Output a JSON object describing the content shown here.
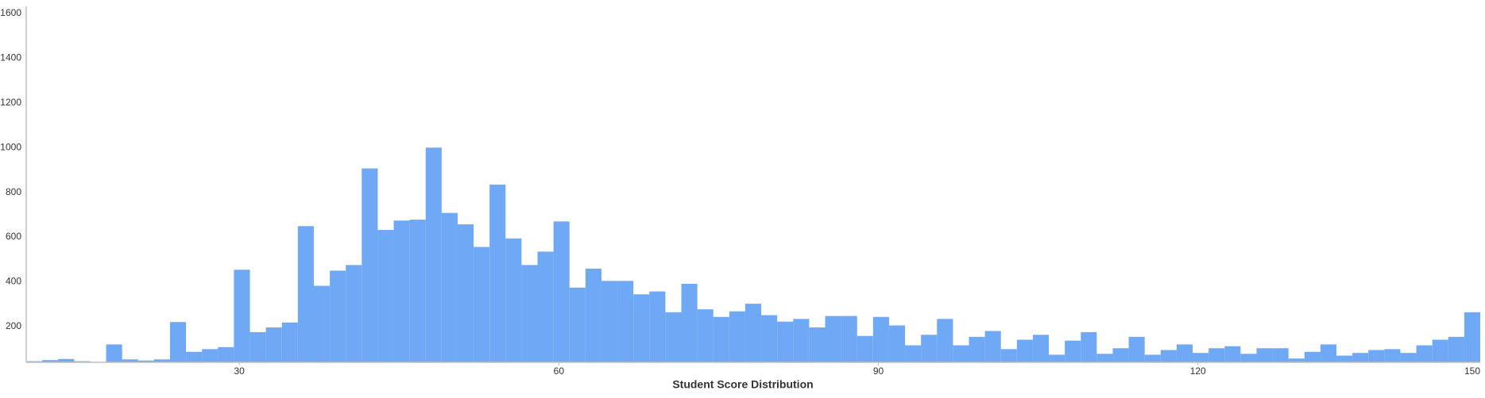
{
  "chart_data": {
    "type": "histogram",
    "xlabel": "Student Score Distribution",
    "color": "#6fa8f4",
    "bins": [
      10,
      11.5,
      13,
      14.5,
      16,
      17.5,
      19,
      20.5,
      22,
      23.5,
      25,
      26.5,
      28,
      29.5,
      31,
      32.5,
      34,
      35.5,
      37,
      38.5,
      40,
      41.5,
      43,
      44.5,
      46,
      47.5,
      49,
      50.5,
      52,
      53.5,
      55,
      56.5,
      58,
      59.5,
      61,
      62.5,
      64,
      65.5,
      67,
      68.5,
      70,
      71.5,
      73,
      74.5,
      76,
      77.5,
      79,
      80.5,
      82,
      83.5,
      85,
      86.5,
      88,
      89.5,
      91,
      92.5,
      94,
      95.5,
      97,
      98.5,
      100,
      101.5,
      103,
      104.5,
      106,
      107.5,
      109,
      110.5,
      112,
      113.5,
      115,
      116.5,
      118,
      119.5,
      121,
      122.5,
      124,
      125.5,
      127,
      128.5,
      130,
      131.5,
      133,
      134.5,
      136,
      137.5,
      139,
      140.5,
      142,
      143.5,
      145,
      146.5
    ],
    "counts": [
      45,
      50,
      55,
      45,
      42,
      120,
      53,
      48,
      53,
      220,
      87,
      99,
      108,
      454,
      175,
      196,
      218,
      649,
      382,
      450,
      475,
      907,
      632,
      674,
      678,
      1000,
      708,
      657,
      556,
      835,
      594,
      475,
      535,
      670,
      374,
      459,
      404,
      404,
      344,
      357,
      264,
      391,
      277,
      243,
      268,
      302,
      251,
      222,
      234,
      196,
      247,
      247,
      158,
      243,
      205,
      116,
      163,
      234,
      116,
      154,
      180,
      99,
      141,
      163,
      74,
      137,
      175,
      78,
      103,
      154,
      74,
      95,
      120,
      82,
      103,
      112,
      78,
      103,
      103,
      57,
      87,
      120,
      70,
      82,
      95,
      99,
      82,
      116,
      141,
      154,
      264
    ],
    "xlim": [
      10,
      146.5
    ],
    "xticks": [
      30,
      60,
      90,
      120,
      150
    ],
    "ylim": [
      40,
      1600
    ],
    "yticks": [
      200,
      400,
      600,
      800,
      1000,
      1200,
      1400,
      1600
    ]
  }
}
